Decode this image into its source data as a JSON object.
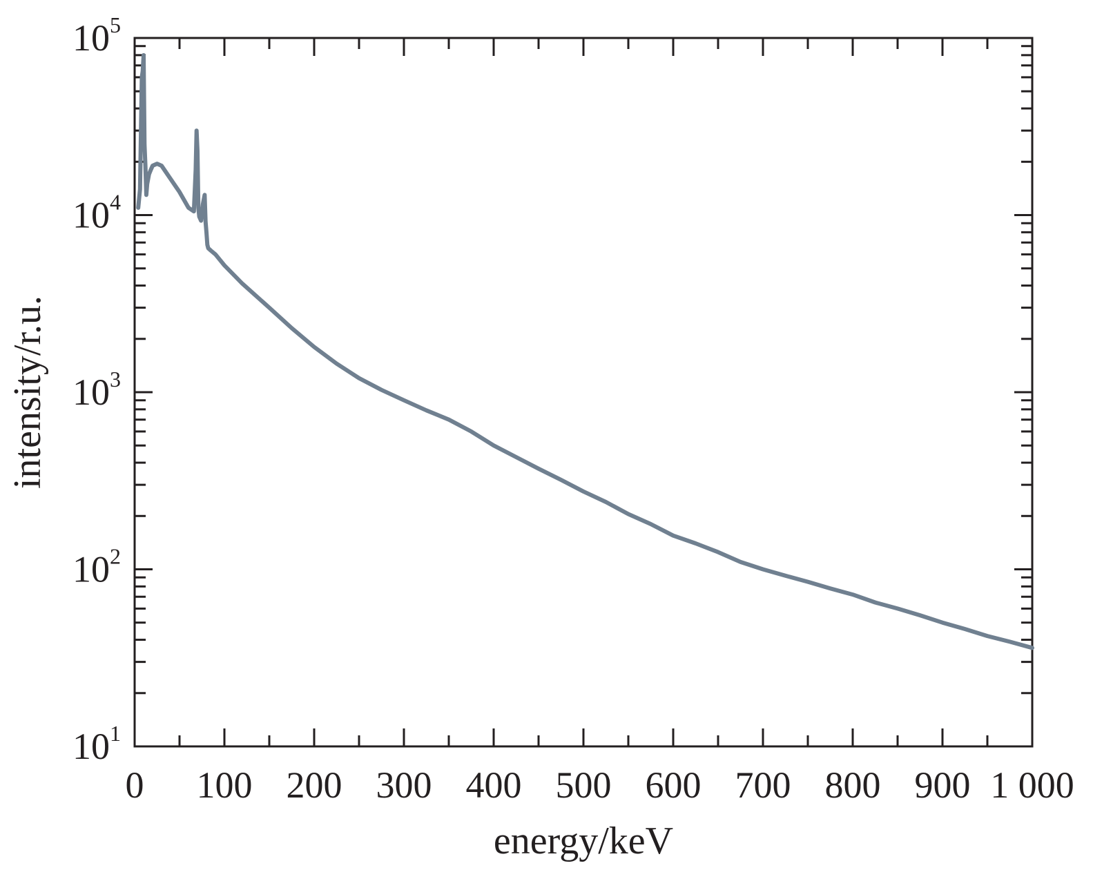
{
  "chart_data": {
    "type": "line",
    "xlabel": "energy/keV",
    "ylabel": "intensity/r.u.",
    "xlim": [
      0,
      1000
    ],
    "ylim": [
      10,
      100000
    ],
    "yscale": "log",
    "grid": false,
    "x_ticks": [
      {
        "value": 0,
        "label": "0"
      },
      {
        "value": 100,
        "label": "100"
      },
      {
        "value": 200,
        "label": "200"
      },
      {
        "value": 300,
        "label": "300"
      },
      {
        "value": 400,
        "label": "400"
      },
      {
        "value": 500,
        "label": "500"
      },
      {
        "value": 600,
        "label": "600"
      },
      {
        "value": 700,
        "label": "700"
      },
      {
        "value": 800,
        "label": "800"
      },
      {
        "value": 900,
        "label": "900"
      },
      {
        "value": 1000,
        "label": "1 000"
      }
    ],
    "y_ticks": [
      {
        "value": 10,
        "base": "10",
        "exp": "1"
      },
      {
        "value": 100,
        "base": "10",
        "exp": "2"
      },
      {
        "value": 1000,
        "base": "10",
        "exp": "3"
      },
      {
        "value": 10000,
        "base": "10",
        "exp": "4"
      },
      {
        "value": 100000,
        "base": "10",
        "exp": "5"
      }
    ],
    "series": [
      {
        "color": "#708090",
        "x": [
          4,
          6,
          8,
          9,
          10,
          11,
          12,
          13,
          14,
          16,
          18,
          20,
          25,
          30,
          40,
          50,
          60,
          66,
          68,
          69,
          70,
          71,
          72,
          74,
          76,
          78,
          79,
          80,
          81,
          82,
          85,
          90,
          100,
          120,
          150,
          175,
          200,
          225,
          250,
          275,
          300,
          325,
          350,
          375,
          400,
          425,
          450,
          475,
          500,
          525,
          550,
          575,
          600,
          625,
          650,
          675,
          700,
          725,
          750,
          775,
          800,
          825,
          850,
          875,
          900,
          925,
          950,
          975,
          1000
        ],
        "y": [
          11000,
          14000,
          60000,
          65000,
          80000,
          25000,
          19000,
          13000,
          15000,
          17000,
          18000,
          19000,
          19500,
          19000,
          16000,
          13500,
          11000,
          10500,
          18000,
          30000,
          23000,
          11000,
          9800,
          9300,
          11500,
          13000,
          9200,
          8000,
          6800,
          6500,
          6300,
          6000,
          5200,
          4100,
          3000,
          2300,
          1800,
          1450,
          1200,
          1030,
          900,
          790,
          700,
          600,
          500,
          430,
          370,
          320,
          275,
          240,
          205,
          180,
          155,
          140,
          125,
          110,
          100,
          92,
          85,
          78,
          72,
          65,
          60,
          55,
          50,
          46,
          42,
          39,
          36
        ]
      }
    ]
  }
}
